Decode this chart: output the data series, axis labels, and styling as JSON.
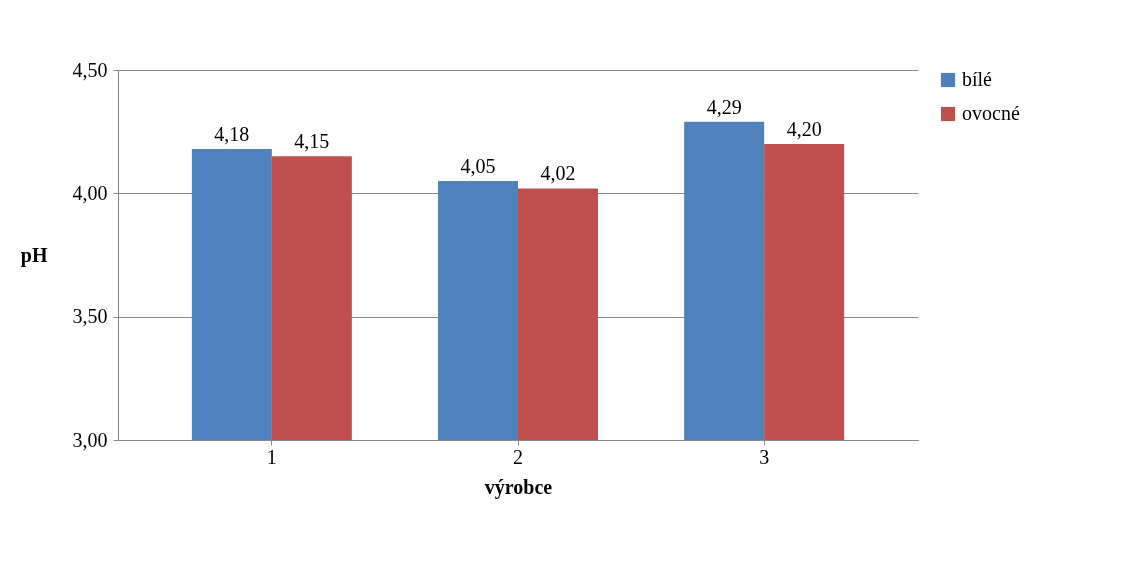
{
  "chart_data": {
    "type": "bar",
    "xlabel": "výrobce",
    "ylabel": "pH",
    "categories": [
      "1",
      "2",
      "3"
    ],
    "series": [
      {
        "name": "bílé",
        "color": "#4f81bd",
        "values": [
          4.18,
          4.05,
          4.29
        ],
        "value_labels": [
          "4,18",
          "4,05",
          "4,29"
        ]
      },
      {
        "name": "ovocné",
        "color": "#c0504d",
        "values": [
          4.15,
          4.02,
          4.2
        ],
        "value_labels": [
          "4,15",
          "4,02",
          "4,20"
        ]
      }
    ],
    "ylim": [
      3,
      4.5
    ],
    "yticks": [
      {
        "value": 3,
        "label": "3,00"
      },
      {
        "value": 3.5,
        "label": "3,50"
      },
      {
        "value": 4,
        "label": "4,00"
      },
      {
        "value": 4.5,
        "label": "4,50"
      }
    ],
    "grid": "y",
    "legend": "right"
  }
}
